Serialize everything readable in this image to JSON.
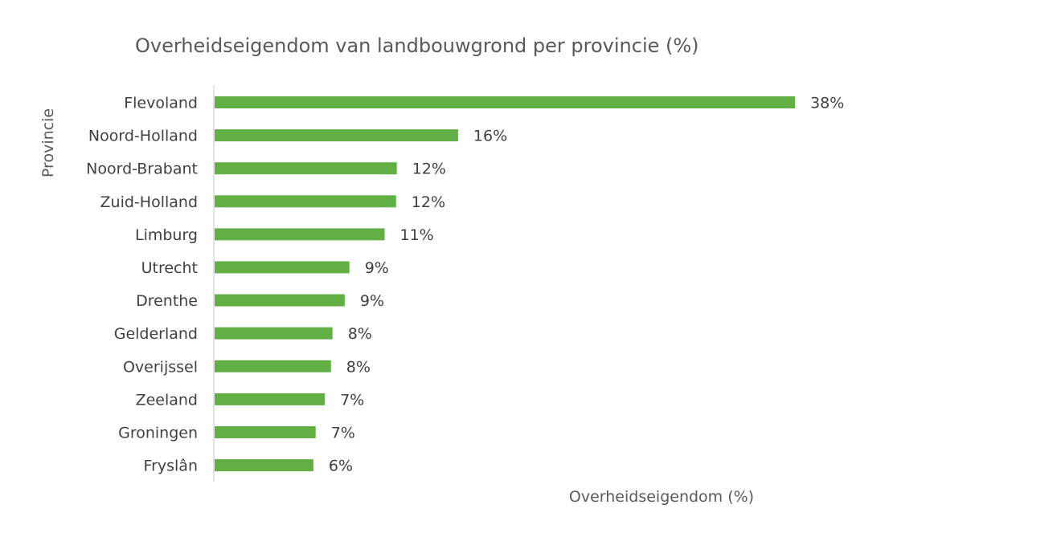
{
  "chart_data": {
    "type": "bar",
    "orientation": "horizontal",
    "title": "Overheidseigendom van landbouwgrond per provincie (%)",
    "xlabel": "Overheidseigendom (%)",
    "ylabel": "Provincie",
    "categories": [
      "Flevoland",
      "Noord-Holland",
      "Noord-Brabant",
      "Zuid-Holland",
      "Limburg",
      "Utrecht",
      "Drenthe",
      "Gelderland",
      "Overijssel",
      "Zeeland",
      "Groningen",
      "Fryslân"
    ],
    "values": [
      37.9,
      15.9,
      11.9,
      11.85,
      11.1,
      8.8,
      8.5,
      7.7,
      7.6,
      7.2,
      6.6,
      6.45
    ],
    "data_labels": [
      "38%",
      "16%",
      "12%",
      "12%",
      "11%",
      "9%",
      "9%",
      "8%",
      "8%",
      "7%",
      "7%",
      "6%"
    ],
    "xlim": [
      0,
      38
    ],
    "grid": false,
    "legend": "none",
    "bar_color": "#62B045",
    "axis_line_color": "#D9D9D9"
  }
}
